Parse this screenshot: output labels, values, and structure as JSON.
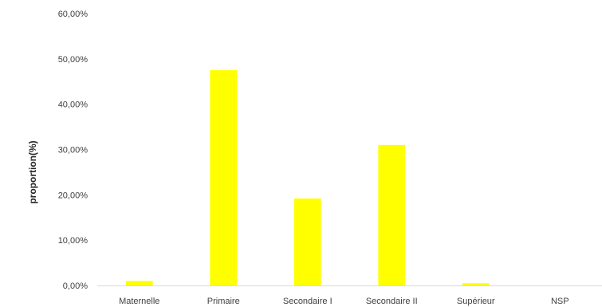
{
  "chart_data": {
    "type": "bar",
    "title": "",
    "xlabel": "",
    "ylabel": "proportion(%)",
    "categories": [
      "Maternelle",
      "Primaire",
      "Secondaire I",
      "Secondaire II",
      "Supérieur",
      "NSP"
    ],
    "values": [
      1.0,
      47.5,
      19.2,
      31.0,
      0.5,
      0
    ],
    "ylim": [
      0,
      60
    ],
    "yticks": [
      0,
      10,
      20,
      30,
      40,
      50,
      60
    ],
    "ytick_labels": [
      "0,00%",
      "10,00%",
      "20,00%",
      "30,00%",
      "40,00%",
      "50,00%",
      "60,00%"
    ],
    "bar_color": "#ffff00",
    "grid": false,
    "legend": "none"
  }
}
